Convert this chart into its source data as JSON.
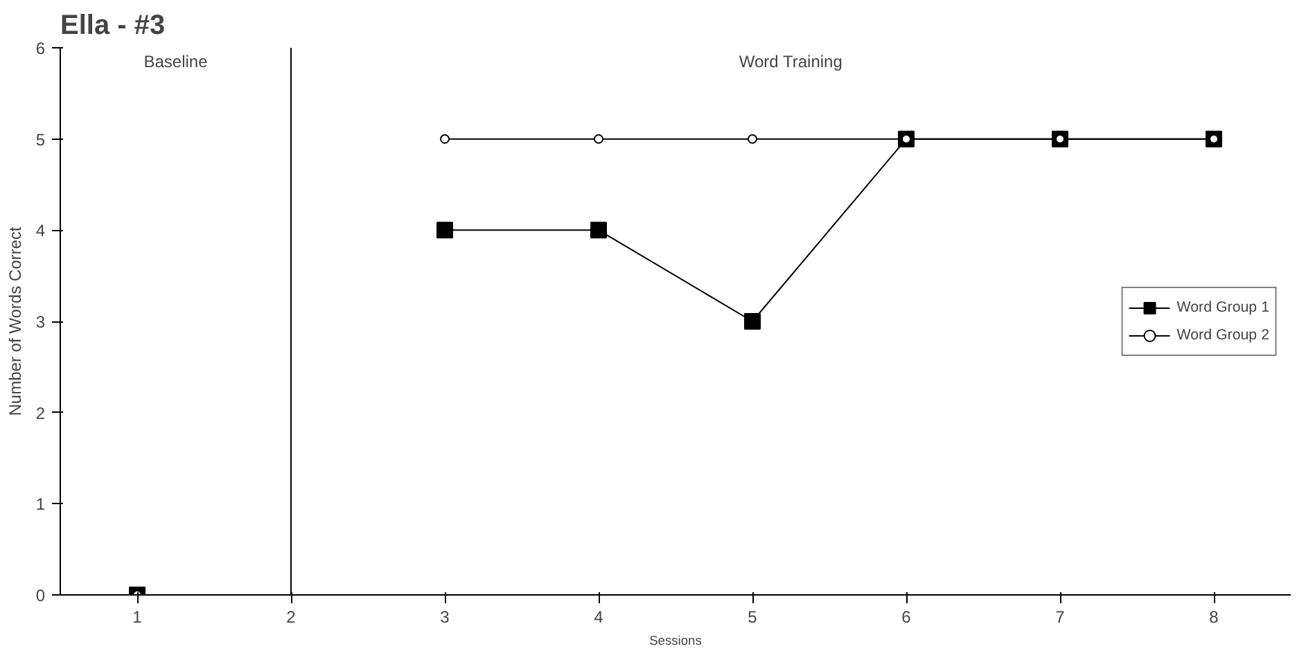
{
  "chart_data": {
    "type": "line",
    "title": "Ella - #3",
    "xlabel": "Sessions",
    "ylabel": "Number of Words Correct",
    "x": [
      1,
      2,
      3,
      4,
      5,
      6,
      7,
      8
    ],
    "xlim": [
      0.5,
      8.5
    ],
    "xticks": [
      1,
      2,
      3,
      4,
      5,
      6,
      7,
      8
    ],
    "ylim": [
      0,
      6
    ],
    "yticks": [
      0,
      1,
      2,
      3,
      4,
      5,
      6
    ],
    "series": [
      {
        "name": "Word Group 1",
        "color": "#000000",
        "marker": "square",
        "values": [
          0,
          null,
          4,
          4,
          3,
          5,
          5,
          5
        ]
      },
      {
        "name": "Word Group 2",
        "color": "#000000",
        "marker": "circle",
        "values": [
          0,
          null,
          5,
          5,
          5,
          5,
          5,
          5
        ]
      }
    ],
    "ref_lines": [
      {
        "axis": "x",
        "value": 2,
        "color": "#000000"
      }
    ],
    "annotations": [
      "Baseline",
      "Word Training"
    ],
    "grid": false,
    "legend": "right",
    "line_style": "solid"
  }
}
